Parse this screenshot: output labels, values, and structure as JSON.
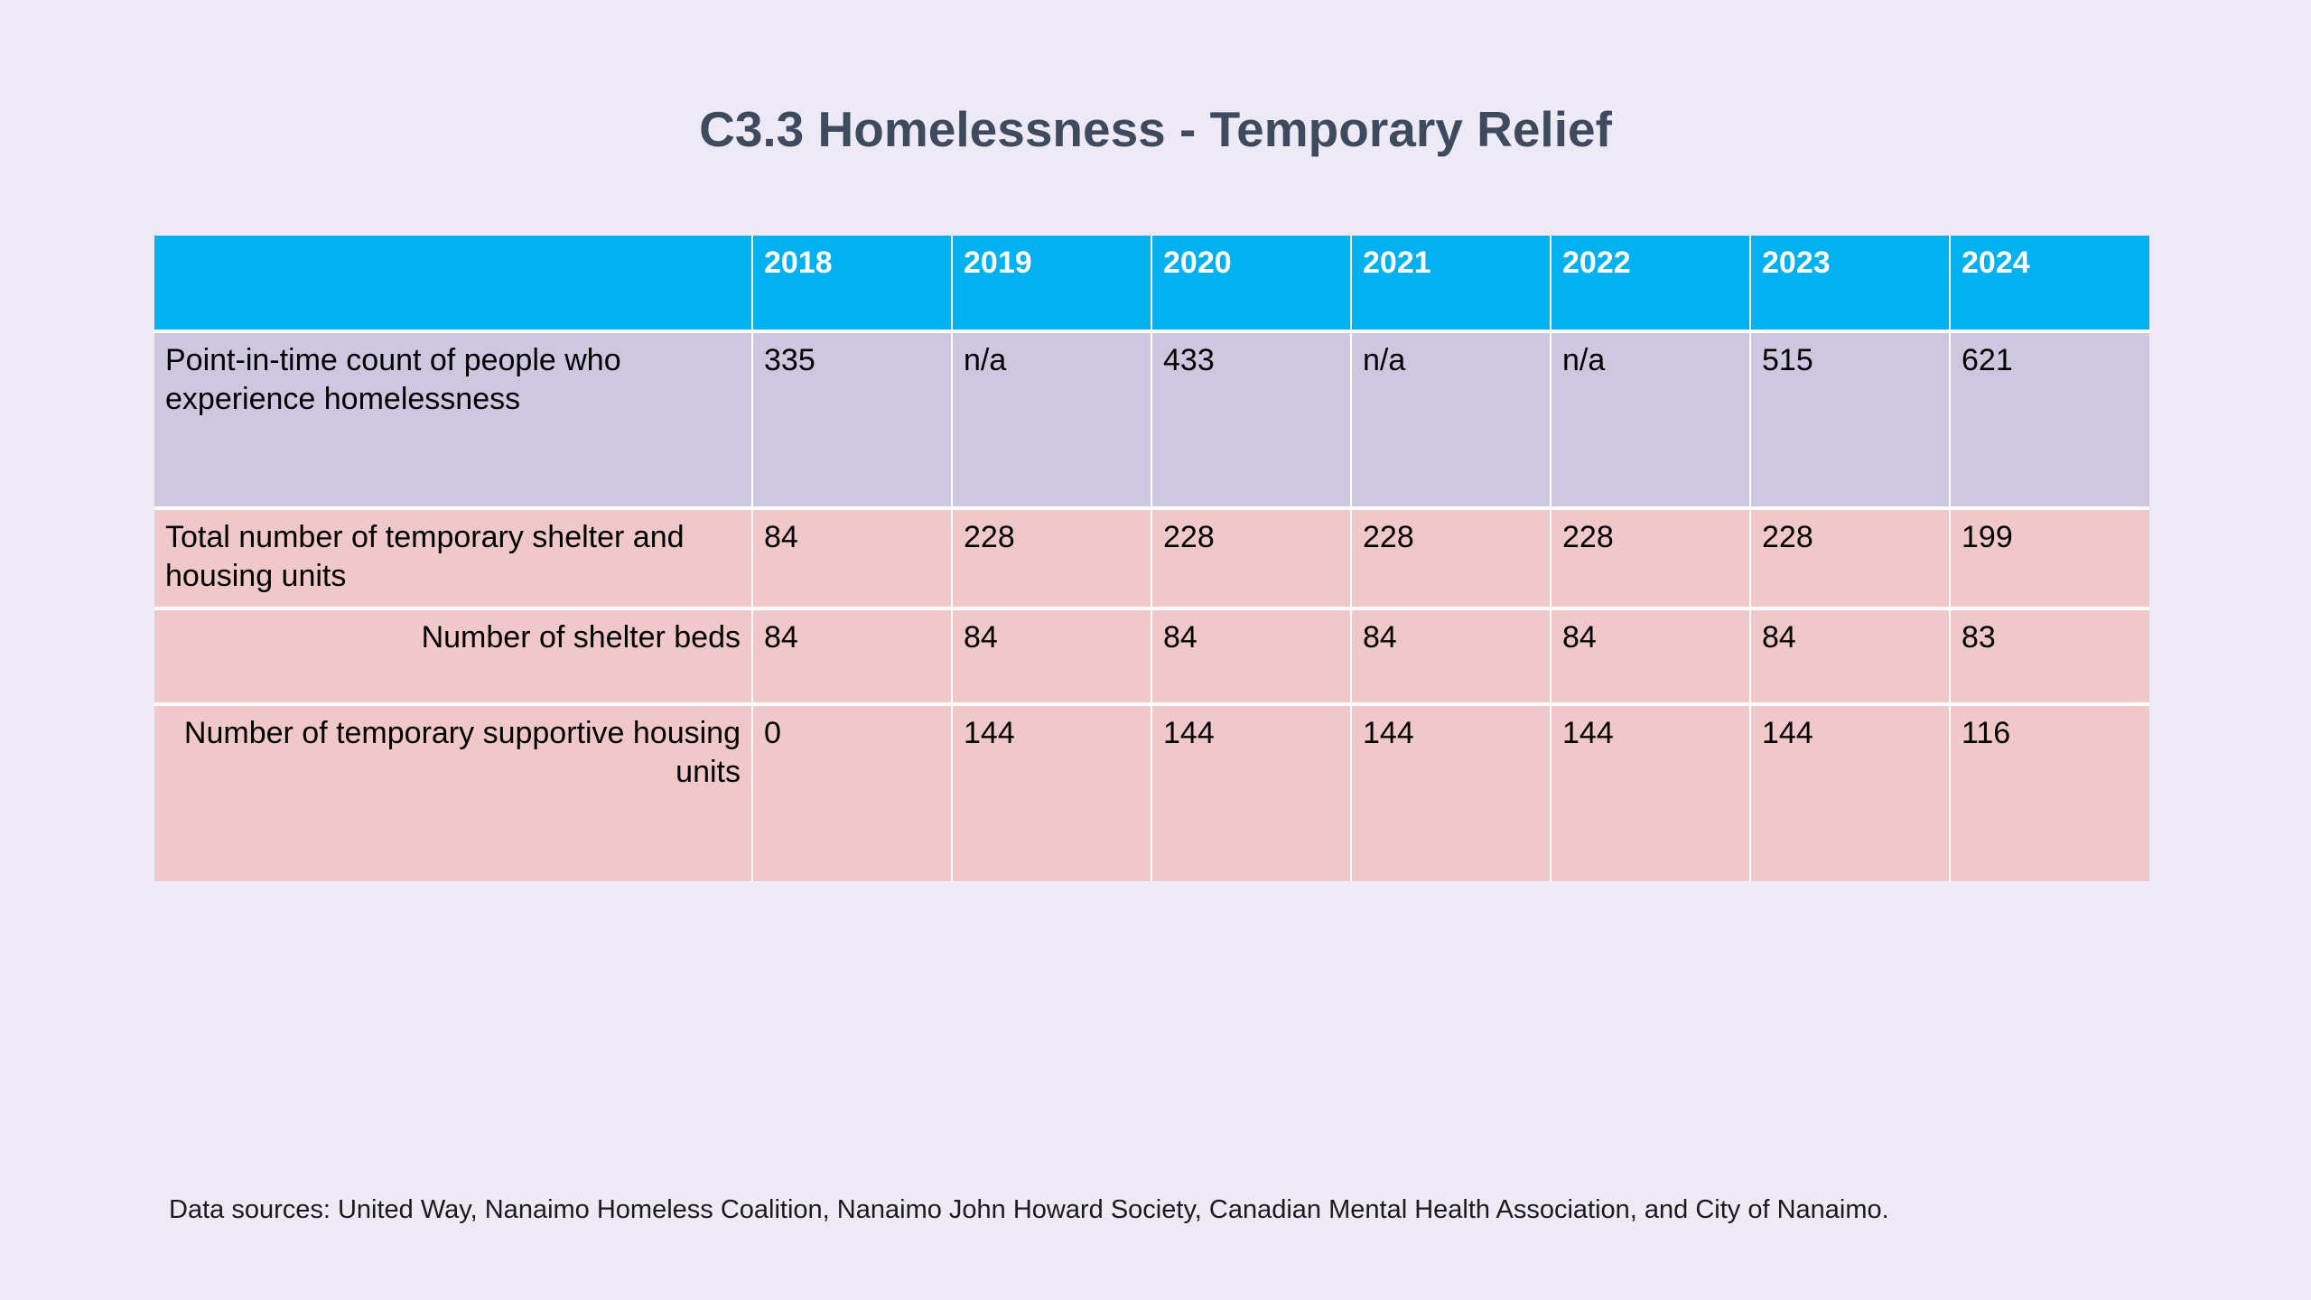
{
  "title": "C3.3 Homelessness - Temporary Relief",
  "footer": "Data sources: United Way, Nanaimo Homeless Coalition, Nanaimo John Howard Society, Canadian Mental Health Association, and City of Nanaimo.",
  "colors": {
    "background": "#EEEAF5",
    "header_bg": "#00B1F0",
    "header_text": "#FFFFFF",
    "row_purple": "#CFC6E0",
    "row_pink": "#F0C8C9",
    "grid": "#FFFFFF",
    "cell_text": "#000000",
    "title_text": "#3E4B5E",
    "footer_text": "#1A1A1A"
  },
  "chart_data": {
    "type": "table",
    "title": "C3.3 Homelessness - Temporary Relief",
    "columns": [
      "",
      "2018",
      "2019",
      "2020",
      "2021",
      "2022",
      "2023",
      "2024"
    ],
    "rows": [
      [
        "Point-in-time count of people who experience homelessness",
        "335",
        "n/a",
        "433",
        "n/a",
        "n/a",
        "515",
        "621"
      ],
      [
        "Total number of temporary shelter and housing units",
        "84",
        "228",
        "228",
        "228",
        "228",
        "228",
        "199"
      ],
      [
        "Number of shelter beds",
        "84",
        "84",
        "84",
        "84",
        "84",
        "84",
        "83"
      ],
      [
        "Number of temporary supportive housing units",
        "0",
        "144",
        "144",
        "144",
        "144",
        "144",
        "116"
      ]
    ],
    "row_groups": [
      "point-in-time-count",
      "total-units",
      "shelter-beds",
      "supportive-housing-units"
    ],
    "source_note": "Data sources: United Way, Nanaimo Homeless Coalition, Nanaimo John Howard Society, Canadian Mental Health Association, and City of Nanaimo."
  }
}
